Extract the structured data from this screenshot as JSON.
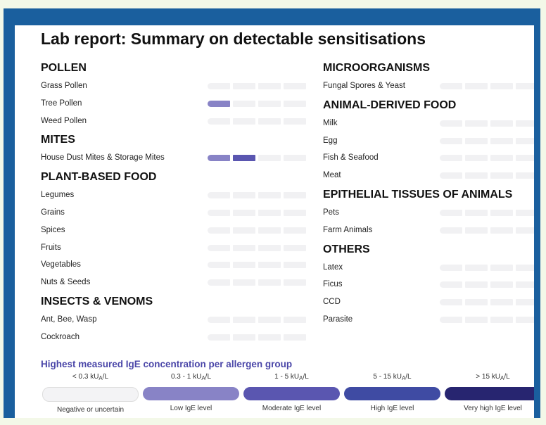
{
  "title": "Lab report: Summary on detectable sensitisations",
  "colors": {
    "border": "#1a5f9e",
    "empty": "#f1f1f3",
    "low": "#8883c6",
    "moderate": "#5a56b0",
    "high": "#3f4ba3",
    "very_high": "#272570"
  },
  "left_groups": [
    {
      "heading": "POLLEN",
      "items": [
        {
          "label": "Grass Pollen",
          "level": 0
        },
        {
          "label": "Tree Pollen",
          "level": 1
        },
        {
          "label": "Weed Pollen",
          "level": 0
        }
      ]
    },
    {
      "heading": "MITES",
      "items": [
        {
          "label": "House Dust Mites & Storage Mites",
          "level": 2
        }
      ]
    },
    {
      "heading": "PLANT-BASED FOOD",
      "items": [
        {
          "label": "Legumes",
          "level": 0
        },
        {
          "label": "Grains",
          "level": 0
        },
        {
          "label": "Spices",
          "level": 0
        },
        {
          "label": "Fruits",
          "level": 0
        },
        {
          "label": "Vegetables",
          "level": 0
        },
        {
          "label": "Nuts & Seeds",
          "level": 0
        }
      ]
    },
    {
      "heading": "INSECTS & VENOMS",
      "items": [
        {
          "label": "Ant, Bee, Wasp",
          "level": 0
        },
        {
          "label": "Cockroach",
          "level": 0
        }
      ]
    }
  ],
  "right_groups": [
    {
      "heading": "MICROORGANISMS",
      "items": [
        {
          "label": "Fungal Spores & Yeast",
          "level": 0
        }
      ]
    },
    {
      "heading": "ANIMAL-DERIVED FOOD",
      "items": [
        {
          "label": "Milk",
          "level": 0
        },
        {
          "label": "Egg",
          "level": 0
        },
        {
          "label": "Fish & Seafood",
          "level": 0
        },
        {
          "label": "Meat",
          "level": 0
        }
      ]
    },
    {
      "heading": "EPITHELIAL TISSUES OF ANIMALS",
      "items": [
        {
          "label": "Pets",
          "level": 0
        },
        {
          "label": "Farm Animals",
          "level": 0
        }
      ]
    },
    {
      "heading": "OTHERS",
      "items": [
        {
          "label": "Latex",
          "level": 0
        },
        {
          "label": "Ficus",
          "level": 0
        },
        {
          "label": "CCD",
          "level": 0
        },
        {
          "label": "Parasite",
          "level": 0
        }
      ]
    }
  ],
  "legend": {
    "title": "Highest measured IgE concentration per allergen group",
    "unit_sub": "A",
    "levels": [
      {
        "range_pre": "< 0.3 kU",
        "range_post": "/L",
        "name": "Negative or uncertain",
        "color": "#f3f3f5"
      },
      {
        "range_pre": "0.3 - 1 kU",
        "range_post": "/L",
        "name": "Low IgE level",
        "color": "#8883c6"
      },
      {
        "range_pre": "1 - 5 kU",
        "range_post": "/L",
        "name": "Moderate IgE level",
        "color": "#5a56b0"
      },
      {
        "range_pre": "5 - 15 kU",
        "range_post": "/L",
        "name": "High IgE level",
        "color": "#3f4ba3"
      },
      {
        "range_pre": "> 15 kU",
        "range_post": "/L",
        "name": "Very high IgE level",
        "color": "#272570"
      }
    ]
  }
}
